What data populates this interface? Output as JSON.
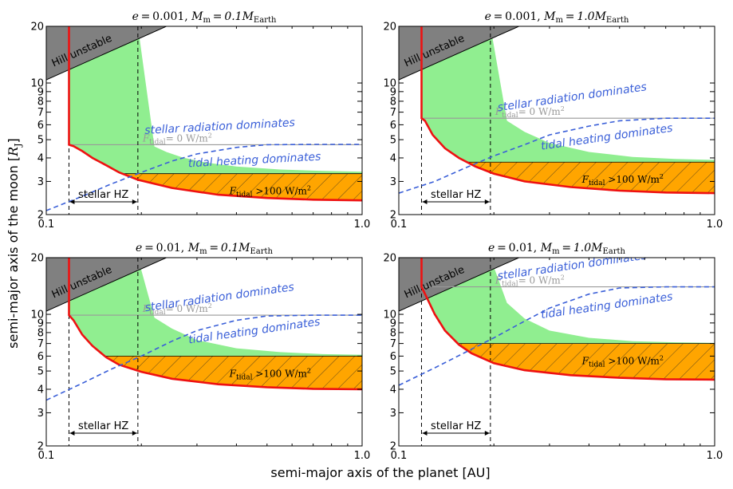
{
  "figure": {
    "xlabel": "semi-major axis of the planet [AU]",
    "ylabel_text": "semi-major axis of the moon [",
    "ylabel_symbol": "R",
    "ylabel_sub": "J",
    "ylabel_close": "]"
  },
  "chart_data": [
    {
      "type": "area",
      "title": {
        "e_part": "e = 0.001,",
        "m_part": "M",
        "m_sub": "m",
        "m_val": " = 0.1M",
        "m_unit": "Earth"
      },
      "xscale": "log",
      "yscale": "log",
      "xlim": [
        0.1,
        1.0
      ],
      "ylim": [
        2,
        20
      ],
      "xticks": [
        "0.1",
        "1.0"
      ],
      "yticks": [
        2,
        3,
        4,
        5,
        6,
        7,
        8,
        9,
        10,
        20
      ],
      "hill_unstable": {
        "label": "Hill unstable",
        "boundary": [
          [
            0.1,
            10.4
          ],
          [
            0.24,
            20
          ]
        ]
      },
      "hz_bounds_au": [
        0.118,
        0.195
      ],
      "hz_label": "stellar HZ",
      "tidal_zero_level": 4.7,
      "tidal_zero_label": {
        "F": "F",
        "sub": "tidal",
        "rest": "= 0 W/m",
        "sup": "2"
      },
      "tidal_100_level": 3.3,
      "tidal_100_label": {
        "F": "F",
        "sub": "tidal",
        "rest": " >100 W/m",
        "sup": "2"
      },
      "red_curve": [
        [
          0.118,
          20
        ],
        [
          0.118,
          4.7
        ],
        [
          0.122,
          4.62
        ],
        [
          0.13,
          4.35
        ],
        [
          0.14,
          4.0
        ],
        [
          0.155,
          3.65
        ],
        [
          0.17,
          3.35
        ],
        [
          0.195,
          3.06
        ],
        [
          0.25,
          2.77
        ],
        [
          0.35,
          2.55
        ],
        [
          0.5,
          2.45
        ],
        [
          0.7,
          2.4
        ],
        [
          1.0,
          2.38
        ]
      ],
      "green_upper": [
        [
          0.195,
          20
        ],
        [
          0.22,
          4.6
        ],
        [
          0.24,
          4.3
        ],
        [
          0.27,
          4.02
        ],
        [
          0.32,
          3.78
        ],
        [
          0.4,
          3.6
        ],
        [
          0.55,
          3.47
        ],
        [
          0.75,
          3.41
        ],
        [
          1.0,
          3.38
        ]
      ],
      "blue_dashed": [
        [
          0.1,
          2.1
        ],
        [
          0.13,
          2.5
        ],
        [
          0.16,
          2.9
        ],
        [
          0.2,
          3.35
        ],
        [
          0.25,
          3.85
        ],
        [
          0.3,
          4.2
        ],
        [
          0.4,
          4.55
        ],
        [
          0.5,
          4.7
        ],
        [
          0.7,
          4.72
        ],
        [
          1.0,
          4.72
        ]
      ],
      "label_stellar": "stellar radiation dominates",
      "label_tidal": "tidal heating dominates"
    },
    {
      "type": "area",
      "title": {
        "e_part": "e = 0.001,",
        "m_part": "M",
        "m_sub": "m",
        "m_val": " = 1.0M",
        "m_unit": "Earth"
      },
      "xscale": "log",
      "yscale": "log",
      "xlim": [
        0.1,
        1.0
      ],
      "ylim": [
        2,
        20
      ],
      "xticks": [
        "0.1",
        "1.0"
      ],
      "yticks": [
        2,
        3,
        4,
        5,
        6,
        7,
        8,
        9,
        10,
        20
      ],
      "hill_unstable": {
        "label": "Hill unstable",
        "boundary": [
          [
            0.1,
            10.4
          ],
          [
            0.24,
            20
          ]
        ]
      },
      "hz_bounds_au": [
        0.118,
        0.195
      ],
      "hz_label": "stellar HZ",
      "tidal_zero_level": 6.5,
      "tidal_zero_label": {
        "F": "F",
        "sub": "tidal",
        "rest": "= 0 W/m",
        "sup": "2"
      },
      "tidal_100_level": 3.8,
      "tidal_100_label": {
        "F": "F",
        "sub": "tidal",
        "rest": " >100 W/m",
        "sup": "2"
      },
      "red_curve": [
        [
          0.118,
          20
        ],
        [
          0.118,
          6.5
        ],
        [
          0.121,
          6.3
        ],
        [
          0.128,
          5.3
        ],
        [
          0.14,
          4.5
        ],
        [
          0.155,
          4.0
        ],
        [
          0.175,
          3.6
        ],
        [
          0.2,
          3.3
        ],
        [
          0.25,
          3.0
        ],
        [
          0.35,
          2.8
        ],
        [
          0.5,
          2.68
        ],
        [
          0.7,
          2.62
        ],
        [
          1.0,
          2.6
        ]
      ],
      "green_upper": [
        [
          0.195,
          20
        ],
        [
          0.22,
          6.3
        ],
        [
          0.25,
          5.5
        ],
        [
          0.3,
          4.8
        ],
        [
          0.4,
          4.3
        ],
        [
          0.55,
          4.05
        ],
        [
          0.75,
          3.95
        ],
        [
          1.0,
          3.9
        ]
      ],
      "blue_dashed": [
        [
          0.1,
          2.6
        ],
        [
          0.13,
          3.0
        ],
        [
          0.16,
          3.5
        ],
        [
          0.2,
          4.1
        ],
        [
          0.25,
          4.7
        ],
        [
          0.3,
          5.3
        ],
        [
          0.4,
          5.9
        ],
        [
          0.5,
          6.3
        ],
        [
          0.7,
          6.5
        ],
        [
          1.0,
          6.5
        ]
      ],
      "label_stellar": "stellar radiation dominates",
      "label_tidal": "tidal heating dominates"
    },
    {
      "type": "area",
      "title": {
        "e_part": "e = 0.01,",
        "m_part": "M",
        "m_sub": "m",
        "m_val": " = 0.1M",
        "m_unit": "Earth"
      },
      "xscale": "log",
      "yscale": "log",
      "xlim": [
        0.1,
        1.0
      ],
      "ylim": [
        2,
        20
      ],
      "xticks": [
        "0.1",
        "1.0"
      ],
      "yticks": [
        2,
        3,
        4,
        5,
        6,
        7,
        8,
        9,
        10,
        20
      ],
      "hill_unstable": {
        "label": "Hill unstable",
        "boundary": [
          [
            0.1,
            10.4
          ],
          [
            0.24,
            20
          ]
        ]
      },
      "hz_bounds_au": [
        0.118,
        0.195
      ],
      "hz_label": "stellar HZ",
      "tidal_zero_level": 9.9,
      "tidal_zero_label": {
        "F": "F",
        "sub": "tidal",
        "rest": "= 0 W/m",
        "sup": "2"
      },
      "tidal_100_level": 6.0,
      "tidal_100_label": {
        "F": "F",
        "sub": "tidal",
        "rest": " >100 W/m",
        "sup": "2"
      },
      "red_curve": [
        [
          0.118,
          20
        ],
        [
          0.118,
          9.9
        ],
        [
          0.122,
          9.3
        ],
        [
          0.13,
          7.8
        ],
        [
          0.14,
          6.8
        ],
        [
          0.155,
          5.9
        ],
        [
          0.17,
          5.4
        ],
        [
          0.2,
          4.95
        ],
        [
          0.25,
          4.55
        ],
        [
          0.35,
          4.25
        ],
        [
          0.5,
          4.1
        ],
        [
          0.7,
          4.02
        ],
        [
          1.0,
          4.0
        ]
      ],
      "green_upper": [
        [
          0.195,
          20
        ],
        [
          0.22,
          9.6
        ],
        [
          0.25,
          8.4
        ],
        [
          0.3,
          7.3
        ],
        [
          0.4,
          6.6
        ],
        [
          0.55,
          6.3
        ],
        [
          0.75,
          6.15
        ],
        [
          1.0,
          6.1
        ]
      ],
      "blue_dashed": [
        [
          0.1,
          3.5
        ],
        [
          0.13,
          4.3
        ],
        [
          0.16,
          5.1
        ],
        [
          0.2,
          6.0
        ],
        [
          0.25,
          7.2
        ],
        [
          0.3,
          8.2
        ],
        [
          0.4,
          9.3
        ],
        [
          0.5,
          9.8
        ],
        [
          0.7,
          9.9
        ],
        [
          1.0,
          9.9
        ]
      ],
      "label_stellar": "stellar radiation dominates",
      "label_tidal": "tidal heating dominates"
    },
    {
      "type": "area",
      "title": {
        "e_part": "e = 0.01,",
        "m_part": "M",
        "m_sub": "m",
        "m_val": " = 1.0M",
        "m_unit": "Earth"
      },
      "xscale": "log",
      "yscale": "log",
      "xlim": [
        0.1,
        1.0
      ],
      "ylim": [
        2,
        20
      ],
      "xticks": [
        "0.1",
        "1.0"
      ],
      "yticks": [
        2,
        3,
        4,
        5,
        6,
        7,
        8,
        9,
        10,
        20
      ],
      "hill_unstable": {
        "label": "Hill unstable",
        "boundary": [
          [
            0.1,
            10.4
          ],
          [
            0.24,
            20
          ]
        ]
      },
      "hz_bounds_au": [
        0.118,
        0.195
      ],
      "hz_label": "stellar HZ",
      "tidal_zero_level": 14.0,
      "tidal_zero_label": {
        "F": "F",
        "sub": "tidal",
        "rest": "= 0 W/m",
        "sup": "2"
      },
      "tidal_100_level": 7.0,
      "tidal_100_label": {
        "F": "F",
        "sub": "tidal",
        "rest": " >100 W/m",
        "sup": "2"
      },
      "red_curve": [
        [
          0.118,
          20
        ],
        [
          0.118,
          14
        ],
        [
          0.122,
          12.5
        ],
        [
          0.13,
          10.0
        ],
        [
          0.14,
          8.2
        ],
        [
          0.155,
          6.9
        ],
        [
          0.17,
          6.2
        ],
        [
          0.2,
          5.5
        ],
        [
          0.25,
          5.05
        ],
        [
          0.35,
          4.75
        ],
        [
          0.5,
          4.6
        ],
        [
          0.7,
          4.52
        ],
        [
          1.0,
          4.5
        ]
      ],
      "green_upper": [
        [
          0.195,
          20
        ],
        [
          0.22,
          11.5
        ],
        [
          0.25,
          9.5
        ],
        [
          0.3,
          8.2
        ],
        [
          0.4,
          7.5
        ],
        [
          0.55,
          7.2
        ],
        [
          0.75,
          7.1
        ],
        [
          1.0,
          7.05
        ]
      ],
      "blue_dashed": [
        [
          0.1,
          4.2
        ],
        [
          0.13,
          5.2
        ],
        [
          0.16,
          6.2
        ],
        [
          0.2,
          7.5
        ],
        [
          0.25,
          9.2
        ],
        [
          0.3,
          10.8
        ],
        [
          0.4,
          12.8
        ],
        [
          0.5,
          13.8
        ],
        [
          0.7,
          14.0
        ],
        [
          1.0,
          14.0
        ]
      ],
      "label_stellar": "stellar radiation dominates",
      "label_tidal": "tidal heating dominates"
    }
  ]
}
